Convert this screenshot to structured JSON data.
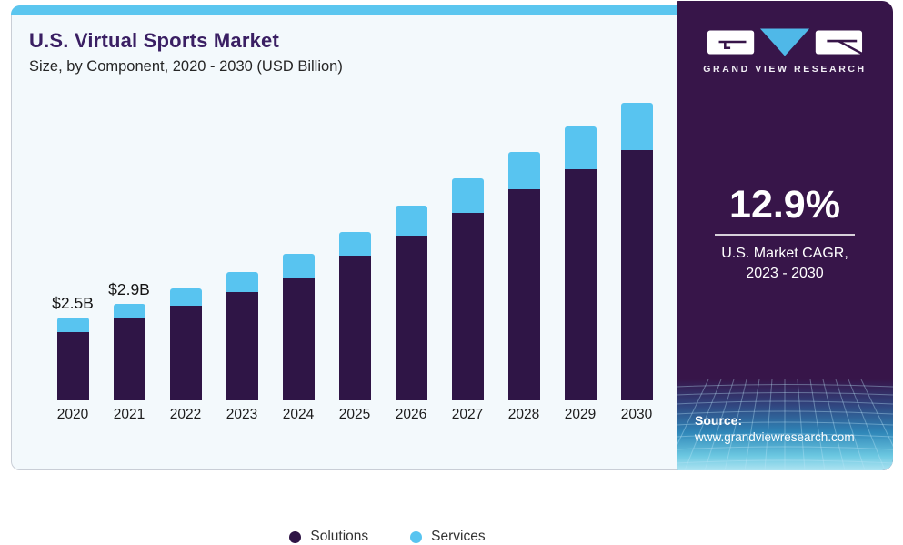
{
  "header": {
    "title": "U.S. Virtual Sports Market",
    "subtitle": "Size, by Component, 2020 - 2030 (USD Billion)"
  },
  "brand": {
    "logo_text": "GRAND VIEW RESEARCH",
    "logo_icon": "gvr-geometric-logo",
    "panel_color": "#371549",
    "accent_blue": "#5bc6ef"
  },
  "stats": {
    "cagr_value": "12.9%",
    "cagr_label_line1": "U.S. Market CAGR,",
    "cagr_label_line2": "2023 - 2030"
  },
  "source": {
    "label": "Source:",
    "url": "www.grandviewresearch.com"
  },
  "legend": [
    {
      "label": "Solutions",
      "color": "#2f1546"
    },
    {
      "label": "Services",
      "color": "#58c4f0"
    }
  ],
  "chart_data": {
    "type": "bar",
    "stacked": true,
    "title": "U.S. Virtual Sports Market",
    "subtitle": "Size, by Component, 2020 - 2030 (USD Billion)",
    "unit": "USD Billion",
    "categories": [
      "2020",
      "2021",
      "2022",
      "2023",
      "2024",
      "2025",
      "2026",
      "2027",
      "2028",
      "2029",
      "2030"
    ],
    "series": [
      {
        "name": "Solutions",
        "color": "#2f1546",
        "values": [
          2.06,
          2.48,
          2.83,
          3.25,
          3.69,
          4.33,
          4.94,
          5.62,
          6.32,
          6.94,
          7.5
        ]
      },
      {
        "name": "Services",
        "color": "#58c4f0",
        "values": [
          0.42,
          0.42,
          0.53,
          0.6,
          0.69,
          0.72,
          0.91,
          1.03,
          1.13,
          1.27,
          1.43
        ]
      }
    ],
    "totals": [
      2.48,
      2.9,
      3.36,
      3.85,
      4.38,
      5.05,
      5.85,
      6.65,
      7.45,
      8.21,
      8.93
    ],
    "annotations": {
      "2020": "$2.5B",
      "2021": "$2.9B"
    },
    "ylim": [
      0,
      9
    ],
    "grid": false,
    "legend_position": "bottom"
  }
}
